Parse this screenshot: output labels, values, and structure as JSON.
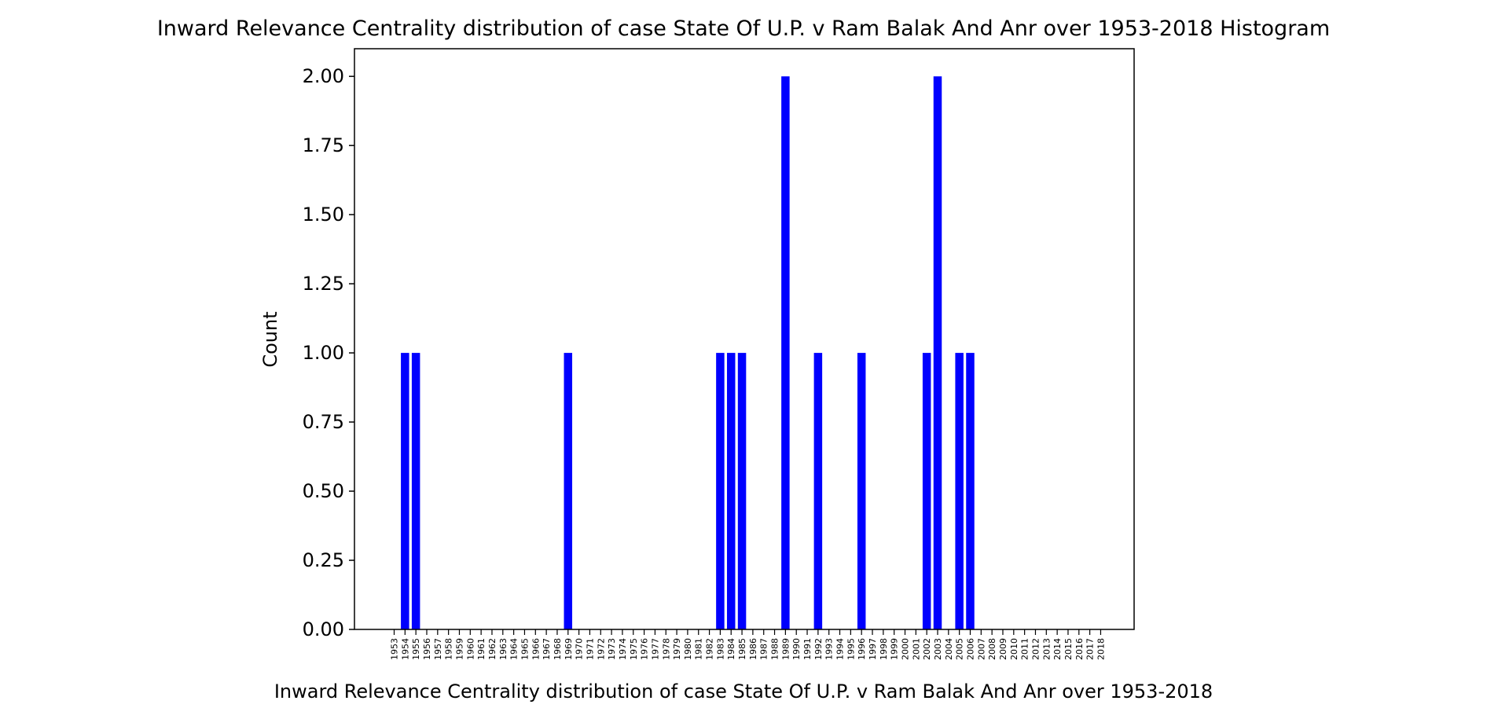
{
  "chart_data": {
    "type": "bar",
    "title": "Inward Relevance Centrality distribution of case State Of U.P. v Ram Balak And Anr over 1953-2018 Histogram",
    "xlabel": "Inward Relevance Centrality distribution of case State Of U.P. v Ram Balak And Anr over 1953-2018",
    "ylabel": "Count",
    "categories": [
      "1953",
      "1954",
      "1955",
      "1956",
      "1957",
      "1958",
      "1959",
      "1960",
      "1961",
      "1962",
      "1963",
      "1964",
      "1965",
      "1966",
      "1967",
      "1968",
      "1969",
      "1970",
      "1971",
      "1972",
      "1973",
      "1974",
      "1975",
      "1976",
      "1977",
      "1978",
      "1979",
      "1980",
      "1981",
      "1982",
      "1983",
      "1984",
      "1985",
      "1986",
      "1987",
      "1988",
      "1989",
      "1990",
      "1991",
      "1992",
      "1993",
      "1994",
      "1995",
      "1996",
      "1997",
      "1998",
      "1999",
      "2000",
      "2001",
      "2002",
      "2003",
      "2004",
      "2005",
      "2006",
      "2007",
      "2008",
      "2009",
      "2010",
      "2011",
      "2012",
      "2013",
      "2014",
      "2015",
      "2016",
      "2017",
      "2018"
    ],
    "values": [
      0,
      1,
      1,
      0,
      0,
      0,
      0,
      0,
      0,
      0,
      0,
      0,
      0,
      0,
      0,
      0,
      1,
      0,
      0,
      0,
      0,
      0,
      0,
      0,
      0,
      0,
      0,
      0,
      0,
      0,
      1,
      1,
      1,
      0,
      0,
      0,
      2,
      0,
      0,
      1,
      0,
      0,
      0,
      1,
      0,
      0,
      0,
      0,
      0,
      1,
      2,
      0,
      1,
      1,
      0,
      0,
      0,
      0,
      0,
      0,
      0,
      0,
      0,
      0,
      0,
      0
    ],
    "ylim": [
      0,
      2.1
    ],
    "yticks": [
      "0.00",
      "0.25",
      "0.50",
      "0.75",
      "1.00",
      "1.25",
      "1.50",
      "1.75",
      "2.00"
    ],
    "bar_color": "#0000ff",
    "grid": false
  }
}
